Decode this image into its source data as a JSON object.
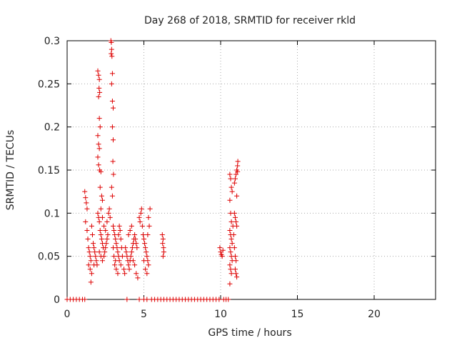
{
  "chart_data": {
    "type": "scatter",
    "title": "Day 268 of 2018, SRMTID for receiver rkld",
    "xlabel": "GPS time / hours",
    "ylabel": "SRMTID / TECUs",
    "xlim": [
      0,
      24
    ],
    "ylim": [
      0,
      0.3
    ],
    "x_ticks": [
      0,
      5,
      10,
      15,
      20
    ],
    "x_tick_labels": [
      "0",
      "5",
      "10",
      "15",
      "20"
    ],
    "y_ticks": [
      0,
      0.05,
      0.1,
      0.15,
      0.2,
      0.25,
      0.3
    ],
    "y_tick_labels": [
      "0",
      "0.05",
      "0.1",
      "0.15",
      "0.2",
      "0.25",
      "0.3"
    ],
    "grid": true,
    "marker": "plus",
    "color": "#dd0000",
    "series": [
      {
        "points": [
          [
            1.15,
            0.125
          ],
          [
            1.2,
            0.118
          ],
          [
            1.25,
            0.112
          ],
          [
            1.3,
            0.105
          ],
          [
            1.2,
            0.09
          ],
          [
            1.3,
            0.08
          ],
          [
            1.35,
            0.07
          ],
          [
            1.4,
            0.06
          ],
          [
            1.45,
            0.055
          ],
          [
            1.5,
            0.05
          ],
          [
            1.55,
            0.045
          ],
          [
            1.4,
            0.04
          ],
          [
            1.5,
            0.035
          ],
          [
            1.6,
            0.03
          ],
          [
            1.55,
            0.02
          ],
          [
            1.7,
            0.065
          ],
          [
            1.75,
            0.06
          ],
          [
            1.8,
            0.055
          ],
          [
            1.65,
            0.075
          ],
          [
            1.85,
            0.05
          ],
          [
            1.9,
            0.045
          ],
          [
            1.95,
            0.04
          ],
          [
            1.6,
            0.085
          ],
          [
            1.75,
            0.04
          ],
          [
            2.0,
            0.1
          ],
          [
            2.05,
            0.095
          ],
          [
            2.1,
            0.09
          ],
          [
            2.15,
            0.08
          ],
          [
            2.2,
            0.075
          ],
          [
            2.25,
            0.07
          ],
          [
            2.3,
            0.065
          ],
          [
            2.35,
            0.06
          ],
          [
            2.1,
            0.055
          ],
          [
            2.2,
            0.05
          ],
          [
            2.3,
            0.045
          ],
          [
            2.4,
            0.05
          ],
          [
            2.45,
            0.055
          ],
          [
            2.5,
            0.06
          ],
          [
            2.55,
            0.065
          ],
          [
            2.6,
            0.07
          ],
          [
            2.65,
            0.075
          ],
          [
            2.5,
            0.08
          ],
          [
            2.4,
            0.085
          ],
          [
            2.3,
            0.095
          ],
          [
            2.2,
            0.105
          ],
          [
            2.6,
            0.09
          ],
          [
            2.7,
            0.1
          ],
          [
            2.75,
            0.105
          ],
          [
            2.8,
            0.095
          ],
          [
            2.0,
            0.265
          ],
          [
            2.05,
            0.26
          ],
          [
            2.1,
            0.255
          ],
          [
            2.08,
            0.245
          ],
          [
            2.12,
            0.24
          ],
          [
            2.05,
            0.235
          ],
          [
            2.1,
            0.21
          ],
          [
            2.15,
            0.2
          ],
          [
            2.0,
            0.19
          ],
          [
            2.05,
            0.18
          ],
          [
            2.1,
            0.175
          ],
          [
            2.0,
            0.165
          ],
          [
            2.05,
            0.156
          ],
          [
            2.12,
            0.15
          ],
          [
            2.2,
            0.148
          ],
          [
            2.15,
            0.13
          ],
          [
            2.25,
            0.12
          ],
          [
            2.3,
            0.115
          ],
          [
            2.85,
            0.3
          ],
          [
            2.88,
            0.298
          ],
          [
            2.9,
            0.29
          ],
          [
            2.87,
            0.285
          ],
          [
            2.92,
            0.282
          ],
          [
            2.95,
            0.262
          ],
          [
            2.9,
            0.25
          ],
          [
            2.95,
            0.23
          ],
          [
            3.0,
            0.222
          ],
          [
            2.95,
            0.2
          ],
          [
            3.0,
            0.185
          ],
          [
            2.98,
            0.16
          ],
          [
            3.02,
            0.145
          ],
          [
            2.9,
            0.13
          ],
          [
            2.95,
            0.12
          ],
          [
            3.0,
            0.085
          ],
          [
            3.05,
            0.08
          ],
          [
            3.1,
            0.075
          ],
          [
            3.15,
            0.07
          ],
          [
            3.2,
            0.065
          ],
          [
            3.25,
            0.06
          ],
          [
            3.3,
            0.055
          ],
          [
            3.35,
            0.05
          ],
          [
            3.4,
            0.045
          ],
          [
            3.1,
            0.04
          ],
          [
            3.2,
            0.035
          ],
          [
            3.3,
            0.03
          ],
          [
            3.0,
            0.06
          ],
          [
            3.05,
            0.05
          ],
          [
            3.15,
            0.045
          ],
          [
            3.35,
            0.075
          ],
          [
            3.4,
            0.085
          ],
          [
            3.45,
            0.08
          ],
          [
            3.5,
            0.07
          ],
          [
            3.55,
            0.06
          ],
          [
            3.6,
            0.05
          ],
          [
            3.5,
            0.04
          ],
          [
            3.7,
            0.035
          ],
          [
            3.75,
            0.03
          ],
          [
            3.8,
            0.06
          ],
          [
            3.85,
            0.055
          ],
          [
            3.9,
            0.05
          ],
          [
            3.95,
            0.045
          ],
          [
            4.0,
            0.04
          ],
          [
            4.05,
            0.035
          ],
          [
            4.1,
            0.045
          ],
          [
            4.15,
            0.05
          ],
          [
            4.2,
            0.055
          ],
          [
            4.25,
            0.06
          ],
          [
            4.3,
            0.065
          ],
          [
            4.35,
            0.07
          ],
          [
            4.4,
            0.075
          ],
          [
            4.45,
            0.07
          ],
          [
            4.5,
            0.065
          ],
          [
            4.55,
            0.06
          ],
          [
            4.0,
            0.075
          ],
          [
            4.1,
            0.08
          ],
          [
            4.2,
            0.085
          ],
          [
            4.3,
            0.045
          ],
          [
            4.4,
            0.04
          ],
          [
            4.5,
            0.03
          ],
          [
            4.6,
            0.025
          ],
          [
            4.7,
            0.095
          ],
          [
            4.75,
            0.09
          ],
          [
            4.8,
            0.1
          ],
          [
            4.85,
            0.105
          ],
          [
            4.9,
            0.085
          ],
          [
            4.95,
            0.075
          ],
          [
            5.0,
            0.07
          ],
          [
            5.05,
            0.065
          ],
          [
            5.1,
            0.06
          ],
          [
            5.15,
            0.055
          ],
          [
            5.2,
            0.05
          ],
          [
            5.25,
            0.045
          ],
          [
            5.3,
            0.04
          ],
          [
            5.0,
            0.045
          ],
          [
            5.1,
            0.035
          ],
          [
            5.2,
            0.03
          ],
          [
            5.35,
            0.085
          ],
          [
            5.4,
            0.105
          ],
          [
            5.3,
            0.095
          ],
          [
            5.25,
            0.075
          ],
          [
            6.2,
            0.075
          ],
          [
            6.25,
            0.07
          ],
          [
            6.22,
            0.065
          ],
          [
            6.28,
            0.06
          ],
          [
            6.3,
            0.055
          ],
          [
            6.25,
            0.05
          ],
          [
            9.95,
            0.06
          ],
          [
            10.0,
            0.055
          ],
          [
            10.05,
            0.052
          ],
          [
            10.1,
            0.05
          ],
          [
            10.15,
            0.057
          ],
          [
            10.6,
            0.145
          ],
          [
            10.65,
            0.14
          ],
          [
            10.7,
            0.13
          ],
          [
            10.75,
            0.125
          ],
          [
            10.6,
            0.115
          ],
          [
            10.65,
            0.1
          ],
          [
            10.7,
            0.09
          ],
          [
            10.6,
            0.08
          ],
          [
            10.65,
            0.075
          ],
          [
            10.7,
            0.07
          ],
          [
            10.75,
            0.065
          ],
          [
            10.6,
            0.06
          ],
          [
            10.65,
            0.055
          ],
          [
            10.7,
            0.05
          ],
          [
            10.75,
            0.045
          ],
          [
            10.6,
            0.04
          ],
          [
            10.65,
            0.035
          ],
          [
            10.7,
            0.03
          ],
          [
            10.6,
            0.018
          ],
          [
            10.8,
            0.085
          ],
          [
            10.85,
            0.075
          ],
          [
            10.9,
            0.1
          ],
          [
            10.95,
            0.095
          ],
          [
            11.0,
            0.09
          ],
          [
            11.05,
            0.085
          ],
          [
            10.9,
            0.06
          ],
          [
            10.95,
            0.05
          ],
          [
            11.0,
            0.045
          ],
          [
            10.95,
            0.035
          ],
          [
            11.0,
            0.03
          ],
          [
            11.05,
            0.026
          ],
          [
            10.9,
            0.135
          ],
          [
            10.95,
            0.14
          ],
          [
            11.0,
            0.145
          ],
          [
            11.05,
            0.15
          ],
          [
            11.1,
            0.155
          ],
          [
            11.12,
            0.16
          ],
          [
            11.1,
            0.148
          ],
          [
            11.05,
            0.12
          ]
        ]
      },
      {
        "points": [
          [
            0.0,
            0
          ],
          [
            0.2,
            0
          ],
          [
            0.4,
            0
          ],
          [
            0.6,
            0
          ],
          [
            0.8,
            0
          ],
          [
            1.0,
            0
          ],
          [
            1.15,
            0
          ],
          [
            3.9,
            0
          ],
          [
            4.7,
            0
          ],
          [
            5.0,
            0
          ],
          [
            5.2,
            0
          ],
          [
            5.5,
            0
          ],
          [
            5.7,
            0
          ],
          [
            5.9,
            0
          ],
          [
            6.1,
            0
          ],
          [
            6.3,
            0
          ],
          [
            6.5,
            0
          ],
          [
            6.7,
            0
          ],
          [
            6.9,
            0
          ],
          [
            7.1,
            0
          ],
          [
            7.3,
            0
          ],
          [
            7.5,
            0
          ],
          [
            7.7,
            0
          ],
          [
            7.9,
            0
          ],
          [
            8.1,
            0
          ],
          [
            8.3,
            0
          ],
          [
            8.5,
            0
          ],
          [
            8.7,
            0
          ],
          [
            8.9,
            0
          ],
          [
            9.1,
            0
          ],
          [
            9.3,
            0
          ],
          [
            9.5,
            0
          ],
          [
            9.7,
            0
          ],
          [
            9.9,
            0
          ],
          [
            10.2,
            0
          ],
          [
            10.35,
            0
          ],
          [
            10.5,
            0
          ]
        ]
      }
    ]
  }
}
